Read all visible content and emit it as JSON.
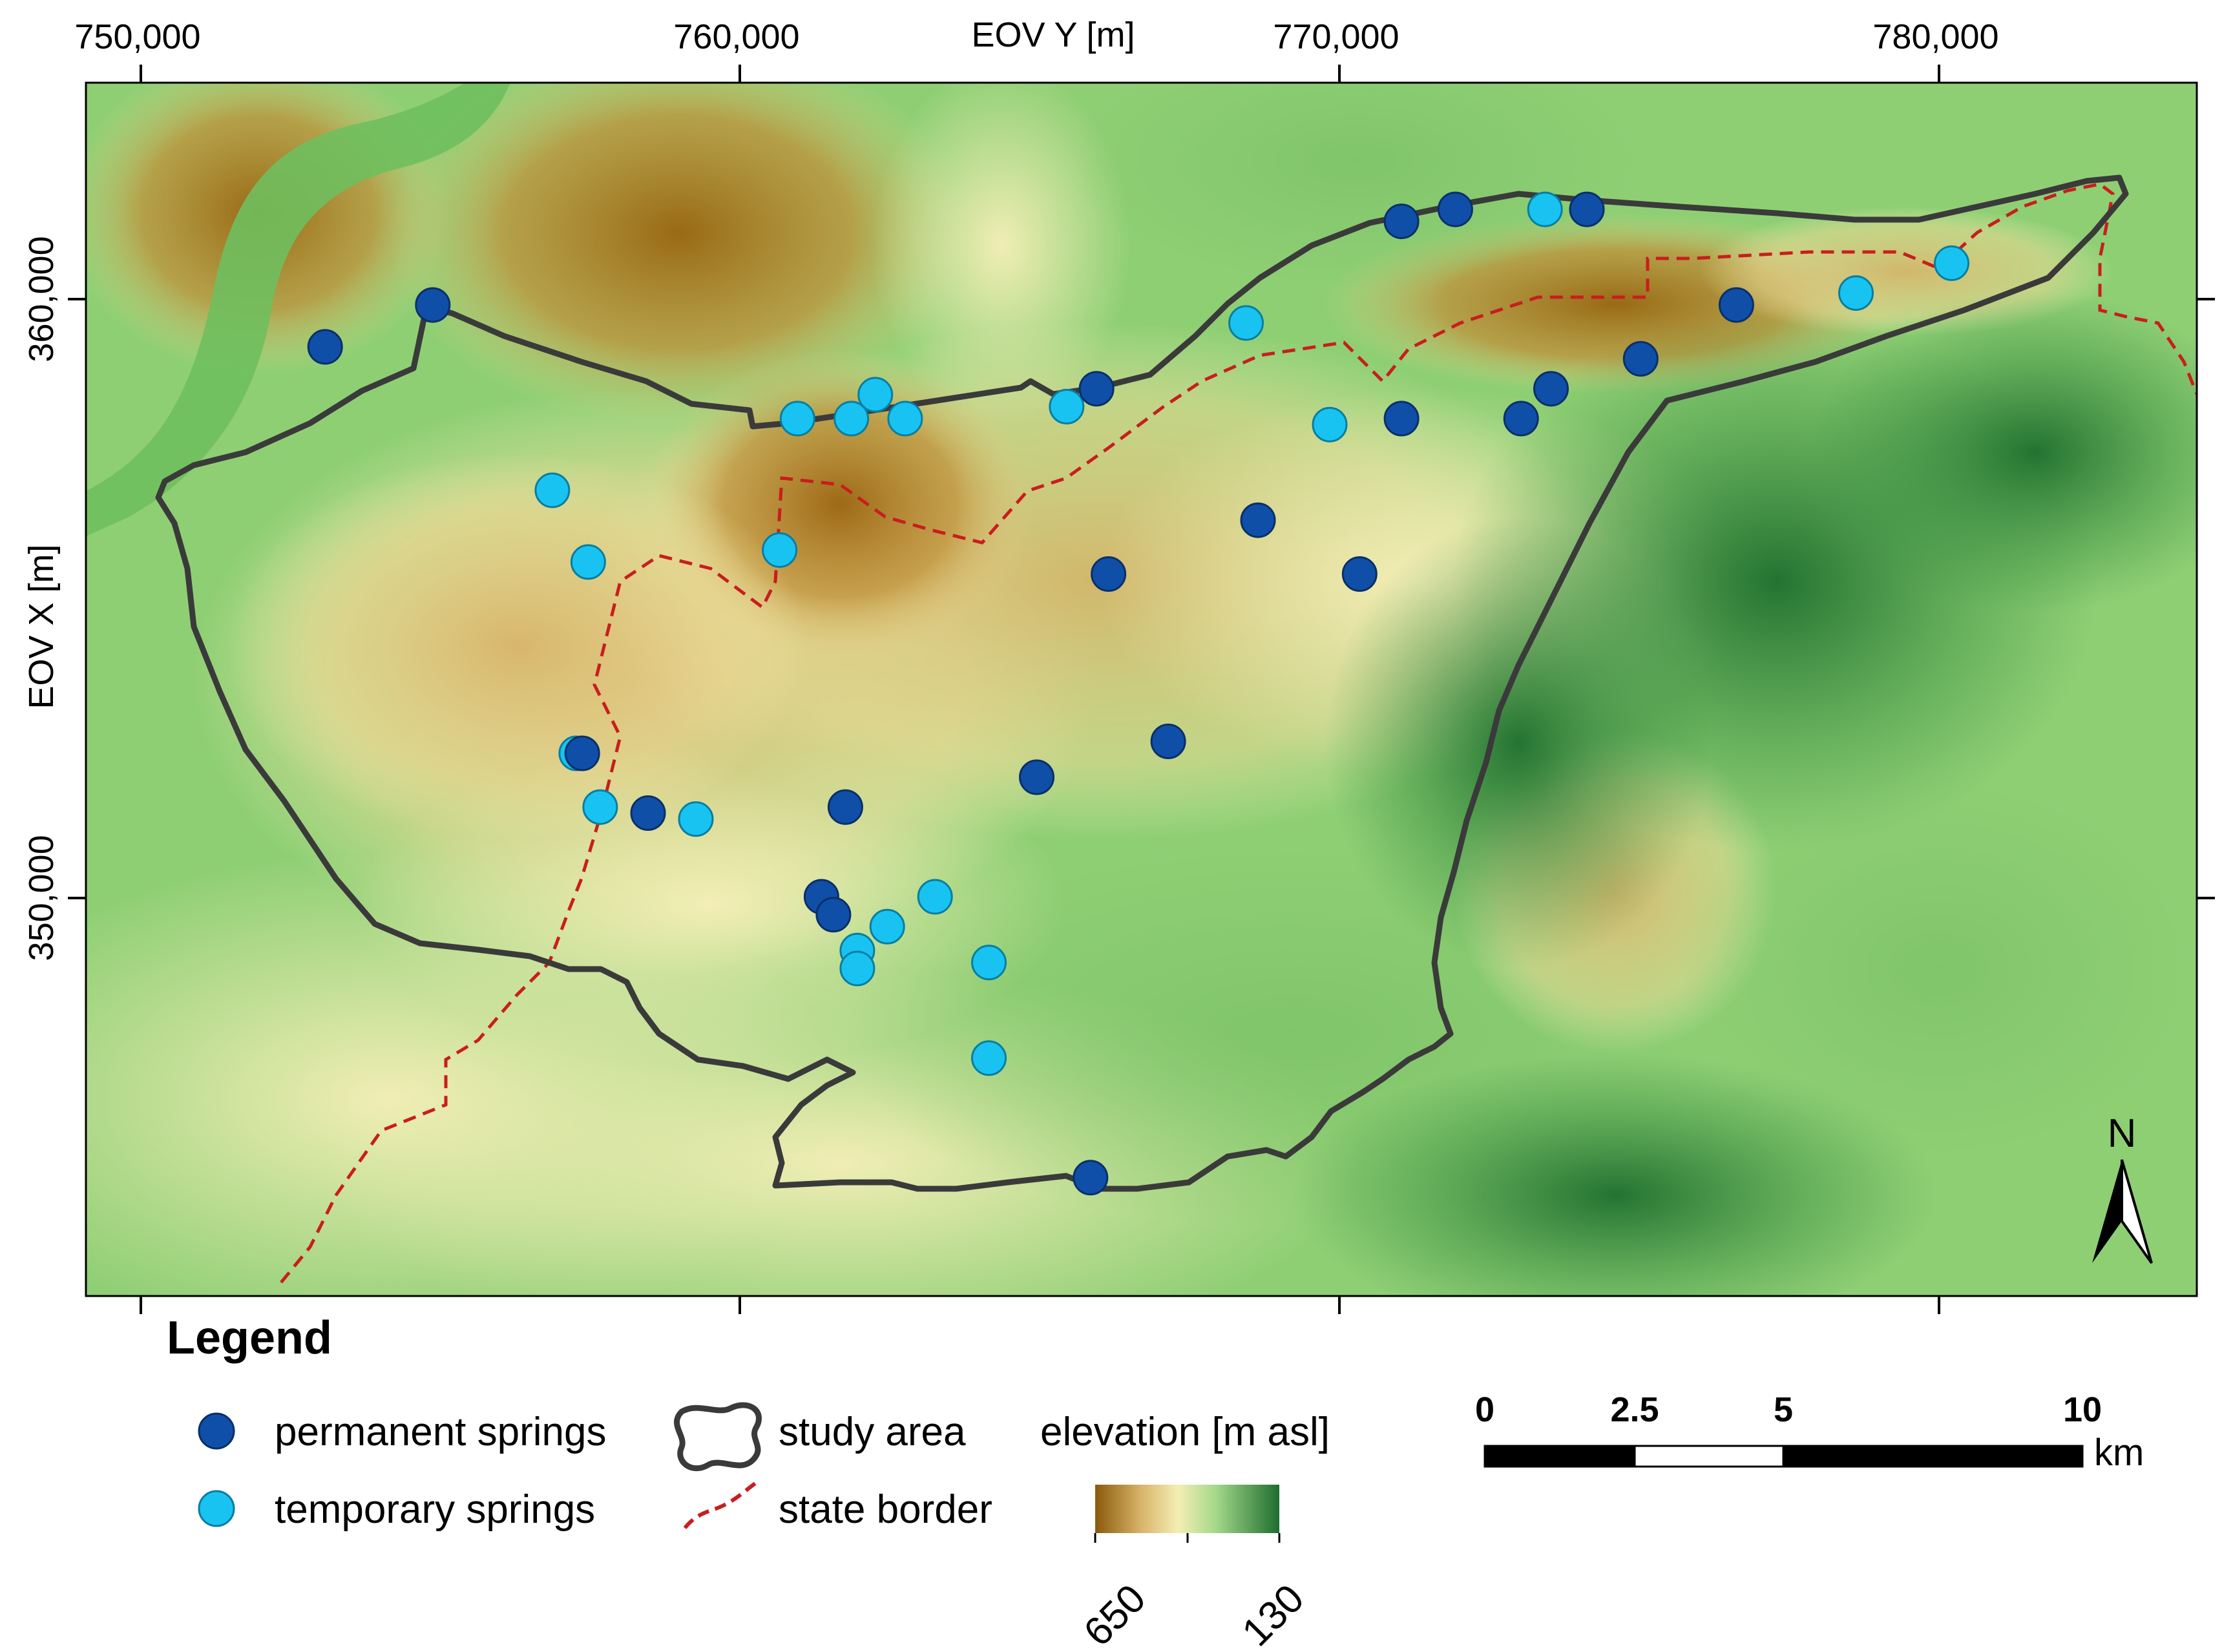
{
  "map": {
    "x_axis": {
      "title": "EOV Y [m]",
      "ticks": [
        {
          "value": 750000,
          "label": "750,000"
        },
        {
          "value": 760000,
          "label": "760,000"
        },
        {
          "value": 770000,
          "label": "770,000"
        },
        {
          "value": 780000,
          "label": "780,000"
        }
      ]
    },
    "y_axis": {
      "title": "EOV X [m]",
      "ticks": [
        {
          "value": 360000,
          "label": "360,000"
        },
        {
          "value": 350000,
          "label": "350,000"
        }
      ]
    },
    "extent": {
      "x_min": 749100,
      "x_max": 784400,
      "y_min": 343320,
      "y_max": 363620
    },
    "north_arrow_label": "N",
    "colors": {
      "permanent_spring": "#0f4fa8",
      "temporary_spring": "#18c3f2",
      "study_area_outline": "#3a3a3a",
      "state_border": "#c81e1e",
      "elevation_high": "#8a5a0b",
      "elevation_mid": "#f2e8a8",
      "elevation_low": "#1e6e2e"
    }
  },
  "springs": {
    "permanent": [
      [
        753100,
        359200
      ],
      [
        754900,
        359900
      ],
      [
        761800,
        351500
      ],
      [
        761400,
        350000
      ],
      [
        761600,
        349700
      ],
      [
        758500,
        351400
      ],
      [
        765000,
        352000
      ],
      [
        766000,
        358500
      ],
      [
        766200,
        355400
      ],
      [
        767200,
        352600
      ],
      [
        768700,
        356300
      ],
      [
        770400,
        355400
      ],
      [
        771100,
        361300
      ],
      [
        771100,
        358000
      ],
      [
        772000,
        361500
      ],
      [
        773100,
        358000
      ],
      [
        773600,
        358500
      ],
      [
        775100,
        359000
      ],
      [
        776700,
        359900
      ],
      [
        774200,
        361500
      ],
      [
        765900,
        345300
      ],
      [
        757400,
        352400
      ]
    ],
    "temporary": [
      [
        763300,
        350000
      ],
      [
        762500,
        349500
      ],
      [
        762000,
        349100
      ],
      [
        762000,
        348800
      ],
      [
        764200,
        348900
      ],
      [
        764200,
        347300
      ],
      [
        757700,
        351500
      ],
      [
        759300,
        351300
      ],
      [
        757300,
        352400
      ],
      [
        757500,
        355600
      ],
      [
        756900,
        356800
      ],
      [
        760700,
        355800
      ],
      [
        761000,
        358000
      ],
      [
        761900,
        358000
      ],
      [
        762300,
        358400
      ],
      [
        762800,
        358000
      ],
      [
        765500,
        358200
      ],
      [
        768500,
        359600
      ],
      [
        769900,
        357900
      ],
      [
        773500,
        361500
      ],
      [
        778700,
        360100
      ],
      [
        780300,
        360600
      ]
    ]
  },
  "legend": {
    "title": "Legend",
    "permanent_label": "permanent springs",
    "temporary_label": "temporary springs",
    "study_area_label": "study area",
    "state_border_label": "state border",
    "elevation_title": "elevation [m asl]",
    "elevation_max_label": "650",
    "elevation_min_label": "130"
  },
  "scale_bar": {
    "labels": [
      "0",
      "2.5",
      "5",
      "10"
    ],
    "unit": "km"
  }
}
